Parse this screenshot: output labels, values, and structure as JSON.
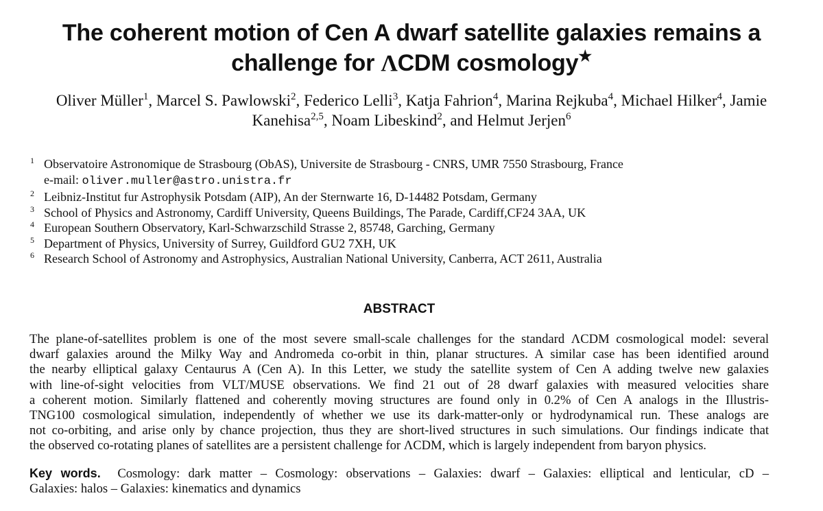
{
  "title": {
    "line1": "The coherent motion of Cen A dwarf satellite galaxies remains a",
    "line2_pre": "challenge for ",
    "lambda": "Λ",
    "line2_post": "CDM cosmology",
    "star": "★"
  },
  "authors": [
    {
      "name": "Oliver Müller",
      "sup": "1",
      "sep": ", "
    },
    {
      "name": "Marcel S. Pawlowski",
      "sup": "2",
      "sep": ", "
    },
    {
      "name": "Federico Lelli",
      "sup": "3",
      "sep": ", "
    },
    {
      "name": "Katja Fahrion",
      "sup": "4",
      "sep": ", "
    },
    {
      "name": "Marina Rejkuba",
      "sup": "4",
      "sep": ", "
    },
    {
      "name": "Michael Hilker",
      "sup": "4",
      "sep": ", "
    },
    {
      "name": "Jamie Kanehisa",
      "sup": "2,5",
      "sep": ", "
    },
    {
      "name": "Noam Libeskind",
      "sup": "2",
      "sep": ", and "
    },
    {
      "name": "Helmut Jerjen",
      "sup": "6",
      "sep": ""
    }
  ],
  "affiliations": [
    {
      "num": "1",
      "text": "Observatoire Astronomique de Strasbourg (ObAS), Universite de Strasbourg - CNRS, UMR 7550 Strasbourg, France"
    },
    {
      "num": "",
      "email_label": "e-mail: ",
      "email": "oliver.muller@astro.unistra.fr"
    },
    {
      "num": "2",
      "text": "Leibniz-Institut fur Astrophysik Potsdam (AIP), An der Sternwarte 16, D-14482 Potsdam, Germany"
    },
    {
      "num": "3",
      "text": "School of Physics and Astronomy, Cardiff University, Queens Buildings, The Parade, Cardiff,CF24 3AA, UK"
    },
    {
      "num": "4",
      "text": "European Southern Observatory, Karl-Schwarzschild Strasse 2, 85748, Garching, Germany"
    },
    {
      "num": "5",
      "text": "Department of Physics, University of Surrey, Guildford GU2 7XH, UK"
    },
    {
      "num": "6",
      "text": "Research School of Astronomy and Astrophysics, Australian National University, Canberra, ACT 2611, Australia"
    }
  ],
  "abstract": {
    "heading": "ABSTRACT",
    "lines": [
      "The plane-of-satellites problem is one of the most severe small-scale challenges for the standard ΛCDM cosmological model: several",
      "dwarf galaxies around the Milky Way and Andromeda co-orbit in thin, planar structures. A similar case has been identified around",
      "the nearby elliptical galaxy Centaurus A (Cen A). In this Letter, we study the satellite system of Cen A adding twelve new galaxies",
      "with line-of-sight velocities from VLT/MUSE observations. We find 21 out of 28 dwarf galaxies with measured velocities share",
      "a coherent motion. Similarly flattened and coherently moving structures are found only in 0.2% of Cen A analogs in the Illustris-",
      "TNG100 cosmological simulation, independently of whether we use its dark-matter-only or hydrodynamical run. These analogs are",
      "not co-orbiting, and arise only by chance projection, thus they are short-lived structures in such simulations. Our findings indicate that",
      "the observed co-rotating planes of satellites are a persistent challenge for ΛCDM, which is largely independent from baryon physics."
    ]
  },
  "keywords": {
    "label": "Key words.",
    "line1": "Cosmology: dark matter – Cosmology: observations – Galaxies: dwarf – Galaxies: elliptical and lenticular, cD –",
    "line2": "Galaxies: halos – Galaxies: kinematics and dynamics"
  }
}
